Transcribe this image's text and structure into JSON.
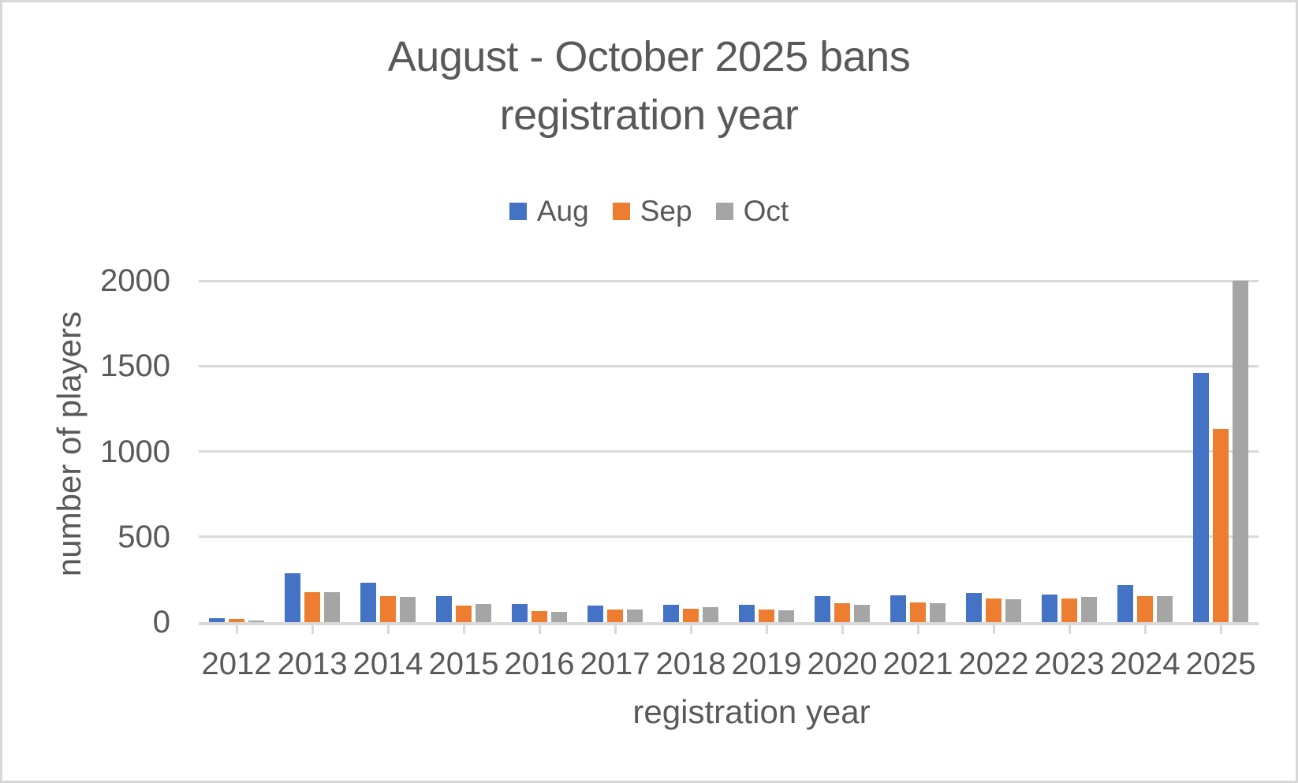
{
  "chart_data": {
    "type": "bar",
    "title": "August - October 2025 bans",
    "subtitle": "registration year",
    "xlabel": "registration year",
    "ylabel": "number of players",
    "ylim": [
      0,
      2000
    ],
    "yticks": [
      0,
      500,
      1000,
      1500,
      2000
    ],
    "grid": true,
    "legend_position": "top",
    "categories": [
      "2012",
      "2013",
      "2014",
      "2015",
      "2016",
      "2017",
      "2018",
      "2019",
      "2020",
      "2021",
      "2022",
      "2023",
      "2024",
      "2025"
    ],
    "series": [
      {
        "name": "Aug",
        "color": "#4472C4",
        "values": [
          25,
          285,
          230,
          152,
          107,
          97,
          102,
          102,
          153,
          158,
          170,
          164,
          215,
          1460
        ]
      },
      {
        "name": "Sep",
        "color": "#ED7D31",
        "values": [
          17,
          177,
          152,
          95,
          65,
          74,
          80,
          74,
          112,
          117,
          140,
          140,
          154,
          1130
        ]
      },
      {
        "name": "Oct",
        "color": "#A5A5A5",
        "values": [
          10,
          176,
          146,
          105,
          58,
          73,
          90,
          68,
          103,
          111,
          132,
          146,
          154,
          2000
        ]
      }
    ],
    "colors": {
      "text": "#595959",
      "gridline": "#D9D9D9",
      "axis_line": "#D9D9D9",
      "frame_border": "#D8D8D8",
      "background": "#FFFFFF"
    }
  }
}
